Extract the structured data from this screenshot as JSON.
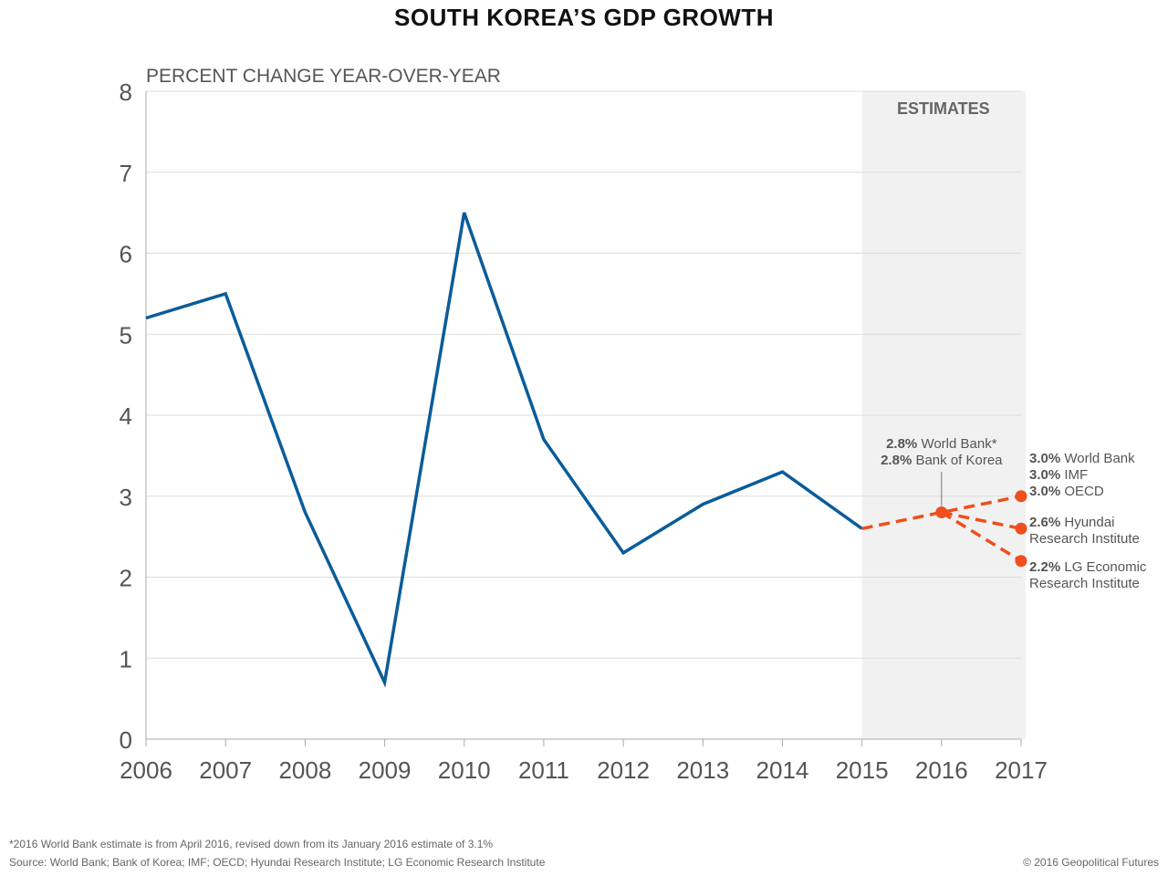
{
  "title": "SOUTH KOREA’S GDP GROWTH",
  "footnote": "*2016 World Bank estimate is from April 2016, revised down from its January 2016 estimate of 3.1%",
  "source": "Source: World Bank; Bank of Korea; IMF; OECD; Hyundai Research Institute; LG Economic Research Institute",
  "copyright": "© 2016 Geopolitical Futures",
  "colors": {
    "actual": "#0b5c99",
    "estimate": "#ee4f1c",
    "estimate_band": "#f1f1f1",
    "grid": "#dddddd",
    "axis": "#aaaaaa"
  },
  "chart_data": {
    "type": "line",
    "ylabel": "PERCENT CHANGE YEAR-OVER-YEAR",
    "ylim": [
      0,
      8
    ],
    "yticks": [
      0,
      1,
      2,
      3,
      4,
      5,
      6,
      7,
      8
    ],
    "xlim": [
      2006,
      2017
    ],
    "xticks": [
      2006,
      2007,
      2008,
      2009,
      2010,
      2011,
      2012,
      2013,
      2014,
      2015,
      2016,
      2017
    ],
    "grid": true,
    "estimates_label": "ESTIMATES",
    "estimates_range": [
      2015,
      2017
    ],
    "series": [
      {
        "style": "solid",
        "x": [
          2006,
          2007,
          2008,
          2009,
          2010,
          2011,
          2012,
          2013,
          2014,
          2015
        ],
        "y": [
          5.2,
          5.5,
          2.8,
          0.7,
          6.5,
          3.7,
          2.3,
          2.9,
          3.3,
          2.6
        ]
      },
      {
        "style": "dashed",
        "x": [
          2015,
          2016,
          2017
        ],
        "y": [
          2.6,
          2.8,
          3.0
        ]
      },
      {
        "style": "dashed",
        "x": [
          2016,
          2017
        ],
        "y": [
          2.8,
          2.6
        ]
      },
      {
        "style": "dashed",
        "x": [
          2016,
          2017
        ],
        "y": [
          2.8,
          2.2
        ]
      }
    ],
    "estimate_points": [
      {
        "x": 2016,
        "y": 2.8
      },
      {
        "x": 2017,
        "y": 3.0
      },
      {
        "x": 2017,
        "y": 2.6
      },
      {
        "x": 2017,
        "y": 2.2
      }
    ],
    "annotations": [
      {
        "id": "a2016",
        "lines": [
          [
            "2.8%",
            " World Bank*"
          ],
          [
            "2.8%",
            " Bank of Korea"
          ]
        ]
      },
      {
        "id": "a2017-30",
        "lines": [
          [
            "3.0%",
            " World Bank"
          ],
          [
            "3.0%",
            " IMF"
          ],
          [
            "3.0%",
            " OECD"
          ]
        ]
      },
      {
        "id": "a2017-26",
        "lines": [
          [
            "2.6%",
            " Hyundai"
          ],
          [
            "",
            "Research Institute"
          ]
        ]
      },
      {
        "id": "a2017-22",
        "lines": [
          [
            "2.2%",
            " LG Economic"
          ],
          [
            "",
            "Research Institute"
          ]
        ]
      }
    ]
  }
}
